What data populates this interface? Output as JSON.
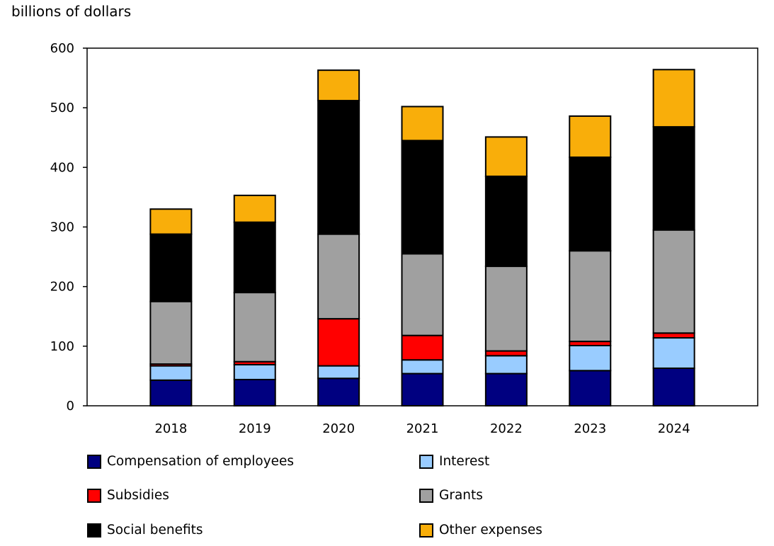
{
  "chart_data": {
    "type": "bar",
    "stacked": true,
    "ylabel": "billions of dollars",
    "xlabel": "",
    "ylim": [
      0,
      600
    ],
    "yticks": [
      0,
      100,
      200,
      300,
      400,
      500,
      600
    ],
    "grid": false,
    "legend_position": "bottom",
    "categories": [
      "2018",
      "2019",
      "2020",
      "2021",
      "2022",
      "2023",
      "2024"
    ],
    "series": [
      {
        "name": "Compensation of employees",
        "color": "#000080",
        "values": [
          43,
          44,
          46,
          54,
          54,
          59,
          63
        ]
      },
      {
        "name": "Interest",
        "color": "#99CCFF",
        "values": [
          24,
          25,
          21,
          23,
          30,
          42,
          51
        ]
      },
      {
        "name": "Subsidies",
        "color": "#FF0000",
        "values": [
          3,
          5,
          79,
          41,
          8,
          7,
          8
        ]
      },
      {
        "name": "Grants",
        "color": "#A0A0A0",
        "values": [
          105,
          116,
          142,
          137,
          142,
          152,
          173
        ]
      },
      {
        "name": "Social benefits",
        "color": "#000000",
        "values": [
          113,
          118,
          224,
          190,
          151,
          157,
          173
        ]
      },
      {
        "name": "Other expenses",
        "color": "#F9AE0A",
        "values": [
          42,
          45,
          51,
          57,
          66,
          69,
          96
        ]
      }
    ]
  }
}
